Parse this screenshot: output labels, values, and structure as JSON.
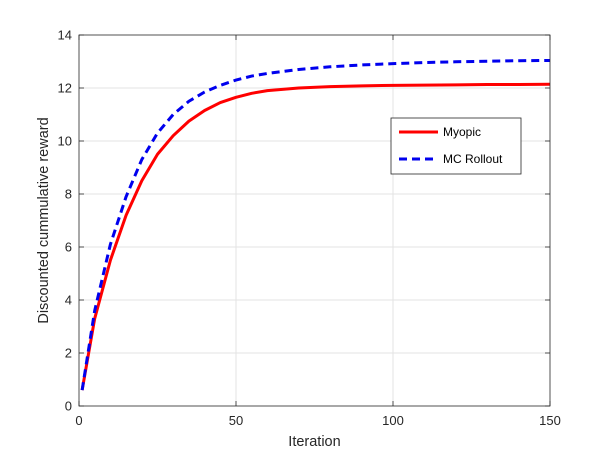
{
  "chart_data": {
    "type": "line",
    "title": "",
    "xlabel": "Iteration",
    "ylabel": "Discounted cummulative reward",
    "xlim": [
      0,
      150
    ],
    "ylim": [
      0,
      14
    ],
    "xticks": [
      0,
      50,
      100,
      150
    ],
    "yticks": [
      0,
      2,
      4,
      6,
      8,
      10,
      12,
      14
    ],
    "grid": true,
    "legend_position": "right",
    "series": [
      {
        "name": "Myopic",
        "color": "#ff0000",
        "style": "solid",
        "x": [
          1,
          5,
          10,
          15,
          20,
          25,
          30,
          35,
          40,
          45,
          50,
          55,
          60,
          70,
          80,
          90,
          100,
          110,
          120,
          130,
          140,
          150
        ],
        "y": [
          0.6,
          3.3,
          5.5,
          7.2,
          8.5,
          9.5,
          10.2,
          10.75,
          11.15,
          11.45,
          11.65,
          11.8,
          11.9,
          12.0,
          12.05,
          12.08,
          12.1,
          12.11,
          12.12,
          12.13,
          12.13,
          12.14
        ]
      },
      {
        "name": "MC Rollout",
        "color": "#0000ee",
        "style": "dashed",
        "x": [
          1,
          5,
          10,
          15,
          20,
          25,
          30,
          35,
          40,
          45,
          50,
          55,
          60,
          70,
          80,
          90,
          100,
          110,
          120,
          130,
          140,
          150
        ],
        "y": [
          0.6,
          3.6,
          6.1,
          7.9,
          9.3,
          10.3,
          11.0,
          11.5,
          11.85,
          12.1,
          12.3,
          12.45,
          12.55,
          12.7,
          12.8,
          12.87,
          12.92,
          12.96,
          12.99,
          13.01,
          13.03,
          13.04
        ]
      }
    ]
  }
}
